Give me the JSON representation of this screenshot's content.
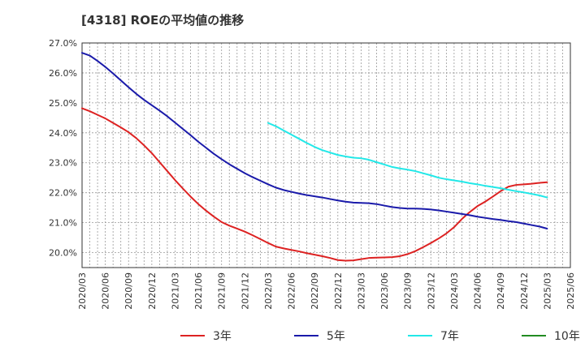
{
  "chart_data": {
    "type": "line",
    "title": "[4318]  ROEの平均値の推移",
    "xlabel": "",
    "ylabel": "",
    "ylim": [
      19.5,
      27.0
    ],
    "yticks": [
      20.0,
      21.0,
      22.0,
      23.0,
      24.0,
      25.0,
      26.0,
      27.0
    ],
    "ytick_labels": [
      "20.0%",
      "21.0%",
      "22.0%",
      "23.0%",
      "24.0%",
      "25.0%",
      "26.0%",
      "27.0%"
    ],
    "x_labels": [
      "2020/03",
      "2020/06",
      "2020/09",
      "2020/12",
      "2021/03",
      "2021/06",
      "2021/09",
      "2021/12",
      "2022/03",
      "2022/06",
      "2022/09",
      "2022/12",
      "2023/03",
      "2023/06",
      "2023/09",
      "2023/12",
      "2024/03",
      "2024/06",
      "2024/09",
      "2024/12",
      "2025/03",
      "2025/06"
    ],
    "grid": true,
    "legend_position": "bottom",
    "series": [
      {
        "name": "3年",
        "color": "#dd2222",
        "x": [
          "2020/03",
          "2020/04",
          "2020/05",
          "2020/06",
          "2020/07",
          "2020/08",
          "2020/09",
          "2020/10",
          "2020/11",
          "2020/12",
          "2021/01",
          "2021/02",
          "2021/03",
          "2021/04",
          "2021/05",
          "2021/06",
          "2021/07",
          "2021/08",
          "2021/09",
          "2021/10",
          "2021/11",
          "2021/12",
          "2022/01",
          "2022/02",
          "2022/03",
          "2022/04",
          "2022/05",
          "2022/06",
          "2022/07",
          "2022/08",
          "2022/09",
          "2022/10",
          "2022/11",
          "2022/12",
          "2023/01",
          "2023/02",
          "2023/03",
          "2023/04",
          "2023/05",
          "2023/06",
          "2023/07",
          "2023/08",
          "2023/09",
          "2023/10",
          "2023/11",
          "2023/12",
          "2024/01",
          "2024/02",
          "2024/03",
          "2024/04",
          "2024/05",
          "2024/06",
          "2024/07",
          "2024/08",
          "2024/09",
          "2024/10",
          "2024/11",
          "2024/12",
          "2025/01",
          "2025/02",
          "2025/03"
        ],
        "values": [
          24.82,
          24.72,
          24.6,
          24.48,
          24.33,
          24.18,
          24.02,
          23.82,
          23.58,
          23.32,
          23.02,
          22.72,
          22.42,
          22.14,
          21.87,
          21.62,
          21.4,
          21.2,
          21.02,
          20.9,
          20.8,
          20.7,
          20.58,
          20.45,
          20.32,
          20.2,
          20.14,
          20.09,
          20.04,
          19.98,
          19.93,
          19.88,
          19.82,
          19.75,
          19.73,
          19.74,
          19.78,
          19.82,
          19.83,
          19.84,
          19.85,
          19.88,
          19.95,
          20.05,
          20.18,
          20.32,
          20.47,
          20.64,
          20.85,
          21.12,
          21.35,
          21.55,
          21.7,
          21.87,
          22.05,
          22.2,
          22.26,
          22.28,
          22.3,
          22.33,
          22.35
        ]
      },
      {
        "name": "5年",
        "color": "#1a1aaa",
        "x": [
          "2020/03",
          "2020/04",
          "2020/05",
          "2020/06",
          "2020/07",
          "2020/08",
          "2020/09",
          "2020/10",
          "2020/11",
          "2020/12",
          "2021/01",
          "2021/02",
          "2021/03",
          "2021/04",
          "2021/05",
          "2021/06",
          "2021/07",
          "2021/08",
          "2021/09",
          "2021/10",
          "2021/11",
          "2021/12",
          "2022/01",
          "2022/02",
          "2022/03",
          "2022/04",
          "2022/05",
          "2022/06",
          "2022/07",
          "2022/08",
          "2022/09",
          "2022/10",
          "2022/11",
          "2022/12",
          "2023/01",
          "2023/02",
          "2023/03",
          "2023/04",
          "2023/05",
          "2023/06",
          "2023/07",
          "2023/08",
          "2023/09",
          "2023/10",
          "2023/11",
          "2023/12",
          "2024/01",
          "2024/02",
          "2024/03",
          "2024/04",
          "2024/05",
          "2024/06",
          "2024/07",
          "2024/08",
          "2024/09",
          "2024/10",
          "2024/11",
          "2024/12",
          "2025/01",
          "2025/02",
          "2025/03"
        ],
        "values": [
          26.67,
          26.58,
          26.4,
          26.2,
          25.98,
          25.75,
          25.52,
          25.3,
          25.1,
          24.92,
          24.74,
          24.55,
          24.34,
          24.13,
          23.92,
          23.7,
          23.5,
          23.3,
          23.12,
          22.95,
          22.8,
          22.65,
          22.52,
          22.4,
          22.28,
          22.17,
          22.09,
          22.03,
          21.97,
          21.92,
          21.88,
          21.84,
          21.79,
          21.74,
          21.7,
          21.67,
          21.66,
          21.65,
          21.62,
          21.57,
          21.52,
          21.49,
          21.47,
          21.47,
          21.46,
          21.44,
          21.41,
          21.37,
          21.33,
          21.29,
          21.25,
          21.2,
          21.16,
          21.12,
          21.09,
          21.05,
          21.02,
          20.97,
          20.92,
          20.87,
          20.8
        ]
      },
      {
        "name": "7年",
        "color": "#22e8e8",
        "x": [
          "2022/03",
          "2022/04",
          "2022/05",
          "2022/06",
          "2022/07",
          "2022/08",
          "2022/09",
          "2022/10",
          "2022/11",
          "2022/12",
          "2023/01",
          "2023/02",
          "2023/03",
          "2023/04",
          "2023/05",
          "2023/06",
          "2023/07",
          "2023/08",
          "2023/09",
          "2023/10",
          "2023/11",
          "2023/12",
          "2024/01",
          "2024/02",
          "2024/03",
          "2024/04",
          "2024/05",
          "2024/06",
          "2024/07",
          "2024/08",
          "2024/09",
          "2024/10",
          "2024/11",
          "2024/12",
          "2025/01",
          "2025/02",
          "2025/03"
        ],
        "values": [
          24.33,
          24.22,
          24.08,
          23.94,
          23.8,
          23.66,
          23.53,
          23.42,
          23.34,
          23.26,
          23.21,
          23.17,
          23.15,
          23.1,
          23.02,
          22.94,
          22.86,
          22.81,
          22.77,
          22.72,
          22.65,
          22.58,
          22.5,
          22.45,
          22.41,
          22.37,
          22.32,
          22.28,
          22.23,
          22.19,
          22.15,
          22.1,
          22.05,
          22.01,
          21.96,
          21.91,
          21.84
        ]
      },
      {
        "name": "10年",
        "color": "#228b22",
        "x": [],
        "values": []
      }
    ]
  }
}
